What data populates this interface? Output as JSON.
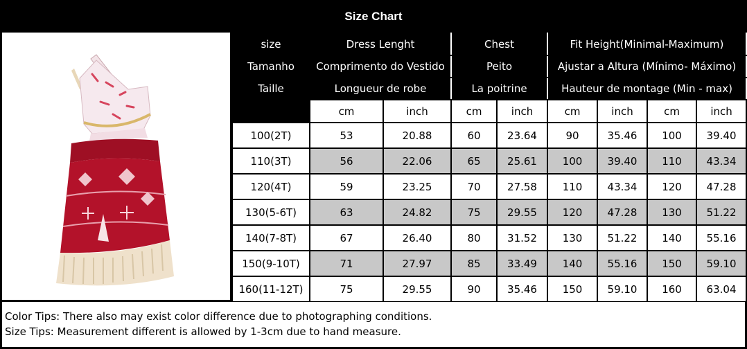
{
  "title": "Size Chart",
  "header_rows": [
    [
      "size",
      "Dress Lenght",
      "Chest",
      "Fit Height(Minimal-Maximum)"
    ],
    [
      "Tamanho",
      "Comprimento do Vestido",
      "Peito",
      "Ajustar a Altura (Mínimo- Máximo)"
    ],
    [
      "Taille",
      "Longueur de robe",
      "La poitrine",
      "Hauteur de montage (Min - max)"
    ]
  ],
  "units": [
    "cm",
    "inch",
    "cm",
    "inch",
    "cm",
    "inch",
    "cm",
    "inch"
  ],
  "rows": [
    [
      "100(2T)",
      "53",
      "20.88",
      "60",
      "23.64",
      "90",
      "35.46",
      "100",
      "39.40"
    ],
    [
      "110(3T)",
      "56",
      "22.06",
      "65",
      "25.61",
      "100",
      "39.40",
      "110",
      "43.34"
    ],
    [
      "120(4T)",
      "59",
      "23.25",
      "70",
      "27.58",
      "110",
      "43.34",
      "120",
      "47.28"
    ],
    [
      "130(5-6T)",
      "63",
      "24.82",
      "75",
      "29.55",
      "120",
      "47.28",
      "130",
      "51.22"
    ],
    [
      "140(7-8T)",
      "67",
      "26.40",
      "80",
      "31.52",
      "130",
      "51.22",
      "140",
      "55.16"
    ],
    [
      "150(9-10T)",
      "71",
      "27.97",
      "85",
      "33.49",
      "140",
      "55.16",
      "150",
      "59.10"
    ],
    [
      "160(11-12T)",
      "75",
      "29.55",
      "90",
      "35.46",
      "150",
      "59.10",
      "160",
      "63.04"
    ]
  ],
  "tips": {
    "color": "Color Tips: There also may exist color difference due to photographing conditions.",
    "size": "Size Tips: Measurement different is allowed by 1-3cm due to hand measure."
  },
  "colors": {
    "background": "#000000",
    "header_text": "#ffffff",
    "shaded_row": "#c8c8c8",
    "dress_red": "#b3122a"
  }
}
